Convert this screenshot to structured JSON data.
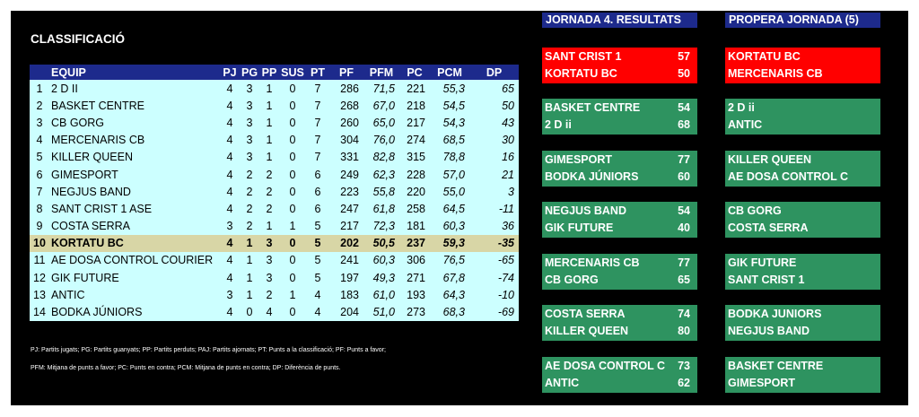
{
  "standings": {
    "title": "CLASSIFICACIÓ",
    "columns": [
      "",
      "EQUIP",
      "PJ",
      "PG",
      "PP",
      "SUS",
      "PT",
      "PF",
      "PFM",
      "PC",
      "PCM",
      "DP"
    ],
    "rows": [
      [
        "1",
        "2 D II",
        "4",
        "3",
        "1",
        "0",
        "7",
        "286",
        "71,5",
        "221",
        "55,3",
        "65"
      ],
      [
        "2",
        "BASKET CENTRE",
        "4",
        "3",
        "1",
        "0",
        "7",
        "268",
        "67,0",
        "218",
        "54,5",
        "50"
      ],
      [
        "3",
        "CB GORG",
        "4",
        "3",
        "1",
        "0",
        "7",
        "260",
        "65,0",
        "217",
        "54,3",
        "43"
      ],
      [
        "4",
        "MERCENARIS CB",
        "4",
        "3",
        "1",
        "0",
        "7",
        "304",
        "76,0",
        "274",
        "68,5",
        "30"
      ],
      [
        "5",
        "KILLER QUEEN",
        "4",
        "3",
        "1",
        "0",
        "7",
        "331",
        "82,8",
        "315",
        "78,8",
        "16"
      ],
      [
        "6",
        "GIMESPORT",
        "4",
        "2",
        "2",
        "0",
        "6",
        "249",
        "62,3",
        "228",
        "57,0",
        "21"
      ],
      [
        "7",
        "NEGJUS BAND",
        "4",
        "2",
        "2",
        "0",
        "6",
        "223",
        "55,8",
        "220",
        "55,0",
        "3"
      ],
      [
        "8",
        "SANT CRIST 1 ASE",
        "4",
        "2",
        "2",
        "0",
        "6",
        "247",
        "61,8",
        "258",
        "64,5",
        "-11"
      ],
      [
        "9",
        "COSTA SERRA",
        "3",
        "2",
        "1",
        "1",
        "5",
        "217",
        "72,3",
        "181",
        "60,3",
        "36"
      ],
      [
        "10",
        "KORTATU BC",
        "4",
        "1",
        "3",
        "0",
        "5",
        "202",
        "50,5",
        "237",
        "59,3",
        "-35"
      ],
      [
        "11",
        "AE DOSA CONTROL COURIER",
        "4",
        "1",
        "3",
        "0",
        "5",
        "241",
        "60,3",
        "306",
        "76,5",
        "-65"
      ],
      [
        "12",
        "GIK FUTURE",
        "4",
        "1",
        "3",
        "0",
        "5",
        "197",
        "49,3",
        "271",
        "67,8",
        "-74"
      ],
      [
        "13",
        "ANTIC",
        "3",
        "1",
        "2",
        "1",
        "4",
        "183",
        "61,0",
        "193",
        "64,3",
        "-10"
      ],
      [
        "14",
        "BODKA JÚNIORS",
        "4",
        "0",
        "4",
        "0",
        "4",
        "204",
        "51,0",
        "273",
        "68,3",
        "-69"
      ]
    ],
    "highlight_row": 9,
    "legend_line1": "PJ: Partits jugats; PG: Partits guanyats; PP: Partits perduts; PAJ: Partits ajornats; PT: Punts a la classificació; PF: Punts a favor;",
    "legend_line2": "PFM: Mitjana de punts a favor; PC: Punts en contra; PCM: Mitjana de punts en contra; DP: Diferència de punts."
  },
  "results": {
    "header": "JORNADA 4. RESULTATS",
    "games": [
      {
        "home": "SANT CRIST 1",
        "home_score": "57",
        "away": "KORTATU BC",
        "away_score": "50",
        "color": "red"
      },
      {
        "home": "BASKET CENTRE",
        "home_score": "54",
        "away": "2 D ii",
        "away_score": "68",
        "color": "green"
      },
      {
        "home": "GIMESPORT",
        "home_score": "77",
        "away": "BODKA JÚNIORS",
        "away_score": "60",
        "color": "green"
      },
      {
        "home": "NEGJUS BAND",
        "home_score": "54",
        "away": "GIK FUTURE",
        "away_score": "40",
        "color": "green"
      },
      {
        "home": "MERCENARIS CB",
        "home_score": "77",
        "away": "CB GORG",
        "away_score": "65",
        "color": "green"
      },
      {
        "home": "COSTA SERRA",
        "home_score": "74",
        "away": "KILLER QUEEN",
        "away_score": "80",
        "color": "green"
      },
      {
        "home": "AE DOSA CONTROL C",
        "home_score": "73",
        "away": "ANTIC",
        "away_score": "62",
        "color": "green"
      }
    ]
  },
  "next_round": {
    "header": "PROPERA JORNADA (5)",
    "games": [
      {
        "home": "KORTATU BC",
        "away": "MERCENARIS CB",
        "color": "red"
      },
      {
        "home": "2 D ii",
        "away": "ANTIC",
        "color": "green"
      },
      {
        "home": "KILLER QUEEN",
        "away": "AE DOSA CONTROL C",
        "color": "green"
      },
      {
        "home": "CB GORG",
        "away": "COSTA SERRA",
        "color": "green"
      },
      {
        "home": "GIK FUTURE",
        "away": "SANT CRIST 1",
        "color": "green"
      },
      {
        "home": "BODKA JUNIORS",
        "away": "NEGJUS BAND",
        "color": "green"
      },
      {
        "home": "BASKET CENTRE",
        "away": "GIMESPORT",
        "color": "green"
      }
    ]
  },
  "colors": {
    "background": "#000000",
    "header_blue": "#1d2a8c",
    "table_row": "#ccffff",
    "highlight_row": "#d8d6a6",
    "box_red": "#ff0000",
    "box_green": "#2e9360"
  }
}
